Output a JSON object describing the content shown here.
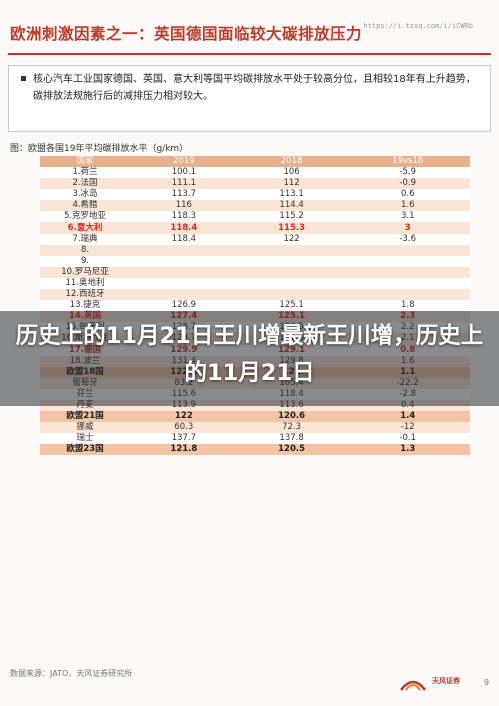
{
  "header": {
    "title": "欧洲刺激因素之一：英国德国面临较大碳排放压力",
    "url": "https://i.tzsq.com/i/iCWRb"
  },
  "summary": {
    "text": "核心汽车工业国家德国、英国、意大利等国平均碳排放水平处于较高分位，且相较18年有上升趋势，碳排放法规施行后的减排压力相对较大。"
  },
  "table_caption": "图：欧盟各国19年平均碳排放水平（g/km）",
  "table": {
    "headers": [
      "国家",
      "2019",
      "2018",
      "19vs18"
    ],
    "rows": [
      {
        "name": "1.荷兰",
        "v2019": "100.1",
        "v2018": "106",
        "diff": "-5.9",
        "style": ""
      },
      {
        "name": "2.法国",
        "v2019": "111.1",
        "v2018": "112",
        "diff": "-0.9",
        "style": ""
      },
      {
        "name": "3.冰岛",
        "v2019": "113.7",
        "v2018": "113.1",
        "diff": "0.6",
        "style": ""
      },
      {
        "name": "4.希腊",
        "v2019": "116",
        "v2018": "114.4",
        "diff": "1.6",
        "style": ""
      },
      {
        "name": "5.克罗地亚",
        "v2019": "118.3",
        "v2018": "115.2",
        "diff": "3.1",
        "style": ""
      },
      {
        "name": "6.意大利",
        "v2019": "118.4",
        "v2018": "115.3",
        "diff": "3",
        "style": "red"
      },
      {
        "name": "7.瑞典",
        "v2019": "118.4",
        "v2018": "122",
        "diff": "-3.6",
        "style": ""
      },
      {
        "name": "8.",
        "v2019": "",
        "v2018": "",
        "diff": "",
        "style": ""
      },
      {
        "name": "9.",
        "v2019": "",
        "v2018": "",
        "diff": "",
        "style": ""
      },
      {
        "name": "10.罗马尼亚",
        "v2019": "",
        "v2018": "",
        "diff": "",
        "style": ""
      },
      {
        "name": "11.奥地利",
        "v2019": "",
        "v2018": "",
        "diff": "",
        "style": ""
      },
      {
        "name": "12.西班牙",
        "v2019": "",
        "v2018": "",
        "diff": "",
        "style": ""
      },
      {
        "name": "13.捷克",
        "v2019": "126.9",
        "v2018": "125.1",
        "diff": "1.8",
        "style": ""
      },
      {
        "name": "14.英国",
        "v2019": "127.4",
        "v2018": "125.1",
        "diff": "2.3",
        "style": "red"
      },
      {
        "name": "15.匈牙利",
        "v2019": "128.7",
        "v2018": "126.5",
        "diff": "2.2",
        "style": ""
      },
      {
        "name": "16.斯洛伐克",
        "v2019": "129.7",
        "v2018": "127.6",
        "diff": "2.1",
        "style": ""
      },
      {
        "name": "17.德国",
        "v2019": "129.9",
        "v2018": "129.1",
        "diff": "0.8",
        "style": "red"
      },
      {
        "name": "18.波兰",
        "v2019": "131.4",
        "v2018": "129.8",
        "diff": "1.6",
        "style": ""
      },
      {
        "name": "欧盟18国",
        "v2019": "122.2",
        "v2018": "121",
        "diff": "1.1",
        "style": "eu"
      },
      {
        "name": "葡萄牙",
        "v2019": "83.2",
        "v2018": "105.4",
        "diff": "-22.2",
        "style": ""
      },
      {
        "name": "芬兰",
        "v2019": "115.6",
        "v2018": "118.4",
        "diff": "-2.8",
        "style": ""
      },
      {
        "name": "丹麦",
        "v2019": "113.9",
        "v2018": "113.6",
        "diff": "0.4",
        "style": ""
      },
      {
        "name": "欧盟21国",
        "v2019": "122",
        "v2018": "120.6",
        "diff": "1.4",
        "style": "eu"
      },
      {
        "name": "挪威",
        "v2019": "60.3",
        "v2018": "72.3",
        "diff": "-12",
        "style": ""
      },
      {
        "name": "瑞士",
        "v2019": "137.7",
        "v2018": "137.8",
        "diff": "-0.1",
        "style": ""
      },
      {
        "name": "欧盟23国",
        "v2019": "121.8",
        "v2018": "120.5",
        "diff": "1.3",
        "style": "eu"
      }
    ]
  },
  "banner": {
    "text": "历史上的11月21日王川增最新王川增，历史上的11月21日"
  },
  "footer": {
    "source": "数据来源：JATO，天风证券研究所",
    "logo_text": "天风证券",
    "page_number": "9"
  }
}
